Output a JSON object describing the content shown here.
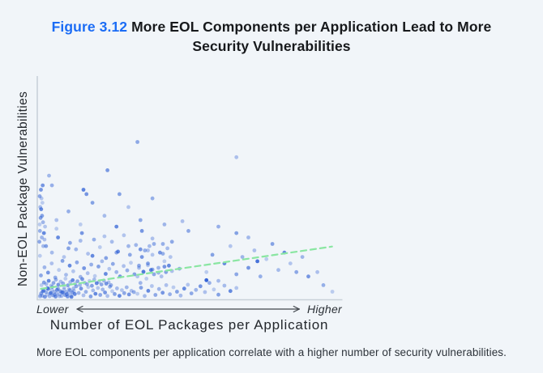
{
  "figure": {
    "label": "Figure 3.12",
    "accent_color": "#1b6cf5",
    "title_line1": "More EOL Components per Application Lead to More",
    "title_line2": "Security Vulnerabilities",
    "title_full": "More EOL Components per Application Lead to More Security Vulnerabilities"
  },
  "caption": "More EOL components per application correlate with a higher number of security vulnerabilities.",
  "chart_data": {
    "type": "scatter",
    "title": "More EOL Components per Application Lead to More Security Vulnerabilities",
    "xlabel": "Number of EOL Packages per Application",
    "ylabel": "Non-EOL Package Vulnerabilities",
    "x_axis_annotation_left": "Lower",
    "x_axis_annotation_right": "Higher",
    "axes_numeric": false,
    "grid": false,
    "legend": "none",
    "point_color": "#2a5cd4",
    "point_radius": 2.4,
    "axis_color": "#c9d1d9",
    "arrow_color": "#41464c",
    "trendline": {
      "color": "#8ae6a2",
      "dash": "7 5",
      "width": 2.2,
      "x1": 0.008,
      "y1": 0.043,
      "x2": 0.979,
      "y2": 0.238
    },
    "x_range_normalized": [
      0,
      1
    ],
    "y_range_normalized": [
      0,
      1
    ],
    "points": [
      [
        0.006,
        0.012
      ],
      [
        0.014,
        0.031
      ],
      [
        0.022,
        0.007
      ],
      [
        0.03,
        0.046
      ],
      [
        0.038,
        0.022
      ],
      [
        0.046,
        0.052
      ],
      [
        0.054,
        0.016
      ],
      [
        0.062,
        0.038
      ],
      [
        0.07,
        0.009
      ],
      [
        0.078,
        0.027
      ],
      [
        0.086,
        0.049
      ],
      [
        0.094,
        0.018
      ],
      [
        0.102,
        0.041
      ],
      [
        0.11,
        0.006
      ],
      [
        0.118,
        0.033
      ],
      [
        0.126,
        0.055
      ],
      [
        0.134,
        0.024
      ],
      [
        0.142,
        0.044
      ],
      [
        0.15,
        0.013
      ],
      [
        0.158,
        0.029
      ],
      [
        0.166,
        0.051
      ],
      [
        0.174,
        0.008
      ],
      [
        0.182,
        0.036
      ],
      [
        0.19,
        0.02
      ],
      [
        0.198,
        0.047
      ],
      [
        0.206,
        0.015
      ],
      [
        0.214,
        0.04
      ],
      [
        0.222,
        0.026
      ],
      [
        0.23,
        0.01
      ],
      [
        0.238,
        0.053
      ],
      [
        0.246,
        0.032
      ],
      [
        0.254,
        0.019
      ],
      [
        0.262,
        0.045
      ],
      [
        0.27,
        0.011
      ],
      [
        0.278,
        0.037
      ],
      [
        0.286,
        0.023
      ],
      [
        0.294,
        0.05
      ],
      [
        0.302,
        0.017
      ],
      [
        0.31,
        0.034
      ],
      [
        0.318,
        0.028
      ],
      [
        0.01,
        0.06
      ],
      [
        0.018,
        0.072
      ],
      [
        0.026,
        0.065
      ],
      [
        0.034,
        0.08
      ],
      [
        0.042,
        0.058
      ],
      [
        0.05,
        0.07
      ],
      [
        0.058,
        0.085
      ],
      [
        0.066,
        0.062
      ],
      [
        0.074,
        0.076
      ],
      [
        0.082,
        0.068
      ],
      [
        0.09,
        0.09
      ],
      [
        0.098,
        0.059
      ],
      [
        0.106,
        0.074
      ],
      [
        0.114,
        0.083
      ],
      [
        0.122,
        0.066
      ],
      [
        0.13,
        0.078
      ],
      [
        0.138,
        0.061
      ],
      [
        0.146,
        0.088
      ],
      [
        0.154,
        0.071
      ],
      [
        0.162,
        0.064
      ],
      [
        0.17,
        0.079
      ],
      [
        0.178,
        0.057
      ],
      [
        0.186,
        0.086
      ],
      [
        0.194,
        0.069
      ],
      [
        0.202,
        0.075
      ],
      [
        0.21,
        0.063
      ],
      [
        0.218,
        0.081
      ],
      [
        0.226,
        0.067
      ],
      [
        0.234,
        0.073
      ],
      [
        0.242,
        0.06
      ],
      [
        0.33,
        0.02
      ],
      [
        0.342,
        0.048
      ],
      [
        0.354,
        0.01
      ],
      [
        0.366,
        0.034
      ],
      [
        0.378,
        0.056
      ],
      [
        0.39,
        0.015
      ],
      [
        0.402,
        0.042
      ],
      [
        0.414,
        0.025
      ],
      [
        0.426,
        0.06
      ],
      [
        0.438,
        0.018
      ],
      [
        0.45,
        0.05
      ],
      [
        0.462,
        0.03
      ],
      [
        0.474,
        0.012
      ],
      [
        0.486,
        0.044
      ],
      [
        0.498,
        0.062
      ],
      [
        0.51,
        0.022
      ],
      [
        0.525,
        0.038
      ],
      [
        0.54,
        0.055
      ],
      [
        0.555,
        0.028
      ],
      [
        0.57,
        0.07
      ],
      [
        0.585,
        0.04
      ],
      [
        0.6,
        0.016
      ],
      [
        0.62,
        0.058
      ],
      [
        0.64,
        0.033
      ],
      [
        0.66,
        0.047
      ],
      [
        0.008,
        0.105
      ],
      [
        0.02,
        0.142
      ],
      [
        0.032,
        0.118
      ],
      [
        0.044,
        0.16
      ],
      [
        0.056,
        0.095
      ],
      [
        0.068,
        0.13
      ],
      [
        0.08,
        0.172
      ],
      [
        0.092,
        0.108
      ],
      [
        0.104,
        0.15
      ],
      [
        0.116,
        0.124
      ],
      [
        0.128,
        0.165
      ],
      [
        0.14,
        0.098
      ],
      [
        0.152,
        0.138
      ],
      [
        0.164,
        0.115
      ],
      [
        0.176,
        0.155
      ],
      [
        0.188,
        0.102
      ],
      [
        0.2,
        0.146
      ],
      [
        0.212,
        0.17
      ],
      [
        0.224,
        0.112
      ],
      [
        0.236,
        0.135
      ],
      [
        0.248,
        0.158
      ],
      [
        0.26,
        0.12
      ],
      [
        0.272,
        0.1
      ],
      [
        0.284,
        0.148
      ],
      [
        0.296,
        0.128
      ],
      [
        0.308,
        0.163
      ],
      [
        0.32,
        0.11
      ],
      [
        0.335,
        0.14
      ],
      [
        0.35,
        0.122
      ],
      [
        0.365,
        0.152
      ],
      [
        0.38,
        0.132
      ],
      [
        0.4,
        0.117
      ],
      [
        0.42,
        0.145
      ],
      [
        0.445,
        0.125
      ],
      [
        0.47,
        0.136
      ],
      [
        0.005,
        0.195
      ],
      [
        0.025,
        0.24
      ],
      [
        0.045,
        0.21
      ],
      [
        0.065,
        0.28
      ],
      [
        0.085,
        0.19
      ],
      [
        0.105,
        0.255
      ],
      [
        0.125,
        0.225
      ],
      [
        0.145,
        0.3
      ],
      [
        0.165,
        0.205
      ],
      [
        0.185,
        0.27
      ],
      [
        0.205,
        0.235
      ],
      [
        0.225,
        0.185
      ],
      [
        0.245,
        0.26
      ],
      [
        0.265,
        0.215
      ],
      [
        0.285,
        0.29
      ],
      [
        0.305,
        0.2
      ],
      [
        0.325,
        0.245
      ],
      [
        0.345,
        0.31
      ],
      [
        0.365,
        0.22
      ],
      [
        0.385,
        0.25
      ],
      [
        0.06,
        0.32
      ],
      [
        0.1,
        0.23
      ],
      [
        0.14,
        0.265
      ],
      [
        0.18,
        0.195
      ],
      [
        0.22,
        0.285
      ],
      [
        0.26,
        0.21
      ],
      [
        0.3,
        0.24
      ],
      [
        0.34,
        0.225
      ],
      [
        0.38,
        0.275
      ],
      [
        0.415,
        0.205
      ],
      [
        0.004,
        0.34
      ],
      [
        0.012,
        0.38
      ],
      [
        0.006,
        0.42
      ],
      [
        0.018,
        0.3
      ],
      [
        0.01,
        0.46
      ],
      [
        0.003,
        0.26
      ],
      [
        0.015,
        0.35
      ],
      [
        0.008,
        0.5
      ],
      [
        0.02,
        0.27
      ],
      [
        0.005,
        0.31
      ],
      [
        0.013,
        0.44
      ],
      [
        0.007,
        0.37
      ],
      [
        0.016,
        0.24
      ],
      [
        0.009,
        0.41
      ],
      [
        0.022,
        0.33
      ],
      [
        0.004,
        0.47
      ],
      [
        0.011,
        0.28
      ],
      [
        0.014,
        0.52
      ],
      [
        0.06,
        0.36
      ],
      [
        0.1,
        0.4
      ],
      [
        0.14,
        0.34
      ],
      [
        0.18,
        0.44
      ],
      [
        0.22,
        0.38
      ],
      [
        0.26,
        0.33
      ],
      [
        0.3,
        0.42
      ],
      [
        0.34,
        0.36
      ],
      [
        0.42,
        0.34
      ],
      [
        0.16,
        0.48
      ],
      [
        0.48,
        0.355
      ],
      [
        0.38,
        0.46
      ],
      [
        0.56,
        0.12
      ],
      [
        0.58,
        0.2
      ],
      [
        0.6,
        0.08
      ],
      [
        0.62,
        0.16
      ],
      [
        0.64,
        0.24
      ],
      [
        0.66,
        0.11
      ],
      [
        0.68,
        0.19
      ],
      [
        0.7,
        0.14
      ],
      [
        0.72,
        0.22
      ],
      [
        0.74,
        0.1
      ],
      [
        0.76,
        0.18
      ],
      [
        0.78,
        0.25
      ],
      [
        0.8,
        0.13
      ],
      [
        0.82,
        0.21
      ],
      [
        0.84,
        0.16
      ],
      [
        0.86,
        0.12
      ],
      [
        0.88,
        0.19
      ],
      [
        0.9,
        0.1
      ],
      [
        0.93,
        0.12
      ],
      [
        0.95,
        0.06
      ],
      [
        0.98,
        0.03
      ],
      [
        0.66,
        0.3
      ],
      [
        0.56,
        0.083,
        0.95
      ],
      [
        0.73,
        0.17,
        0.85
      ],
      [
        0.33,
        0.72,
        0.5
      ],
      [
        0.66,
        0.65,
        0.35
      ],
      [
        0.23,
        0.59,
        0.6
      ],
      [
        0.045,
        0.52,
        0.45
      ],
      [
        0.15,
        0.5,
        0.75
      ],
      [
        0.27,
        0.48,
        0.55
      ],
      [
        0.5,
        0.31,
        0.5
      ],
      [
        0.7,
        0.28,
        0.4
      ],
      [
        0.035,
        0.565,
        0.4
      ],
      [
        0.6,
        0.33,
        0.45
      ],
      [
        0.005,
        0.008
      ],
      [
        0.009,
        0.022
      ],
      [
        0.013,
        0.011
      ],
      [
        0.017,
        0.035
      ],
      [
        0.021,
        0.006
      ],
      [
        0.025,
        0.028
      ],
      [
        0.029,
        0.016
      ],
      [
        0.033,
        0.042
      ],
      [
        0.037,
        0.009
      ],
      [
        0.041,
        0.024
      ],
      [
        0.045,
        0.038
      ],
      [
        0.049,
        0.013
      ],
      [
        0.053,
        0.03
      ],
      [
        0.057,
        0.007
      ],
      [
        0.061,
        0.021
      ],
      [
        0.065,
        0.044
      ],
      [
        0.069,
        0.017
      ],
      [
        0.073,
        0.032
      ],
      [
        0.077,
        0.01
      ],
      [
        0.081,
        0.026
      ],
      [
        0.085,
        0.04
      ],
      [
        0.089,
        0.014
      ],
      [
        0.093,
        0.029
      ],
      [
        0.097,
        0.008
      ],
      [
        0.101,
        0.023
      ],
      [
        0.105,
        0.037
      ],
      [
        0.109,
        0.012
      ],
      [
        0.113,
        0.027
      ],
      [
        0.117,
        0.045
      ],
      [
        0.121,
        0.019
      ],
      [
        0.33,
        0.1
      ],
      [
        0.335,
        0.15
      ],
      [
        0.34,
        0.07
      ],
      [
        0.345,
        0.19
      ],
      [
        0.35,
        0.12
      ],
      [
        0.355,
        0.22
      ],
      [
        0.36,
        0.09
      ],
      [
        0.365,
        0.16
      ],
      [
        0.37,
        0.24
      ],
      [
        0.375,
        0.13
      ],
      [
        0.38,
        0.2
      ],
      [
        0.385,
        0.11
      ],
      [
        0.4,
        0.14
      ],
      [
        0.405,
        0.21
      ],
      [
        0.41,
        0.1
      ],
      [
        0.415,
        0.25
      ],
      [
        0.42,
        0.17
      ],
      [
        0.425,
        0.12
      ],
      [
        0.43,
        0.23
      ],
      [
        0.435,
        0.15
      ],
      [
        0.44,
        0.19
      ],
      [
        0.445,
        0.26
      ]
    ]
  }
}
